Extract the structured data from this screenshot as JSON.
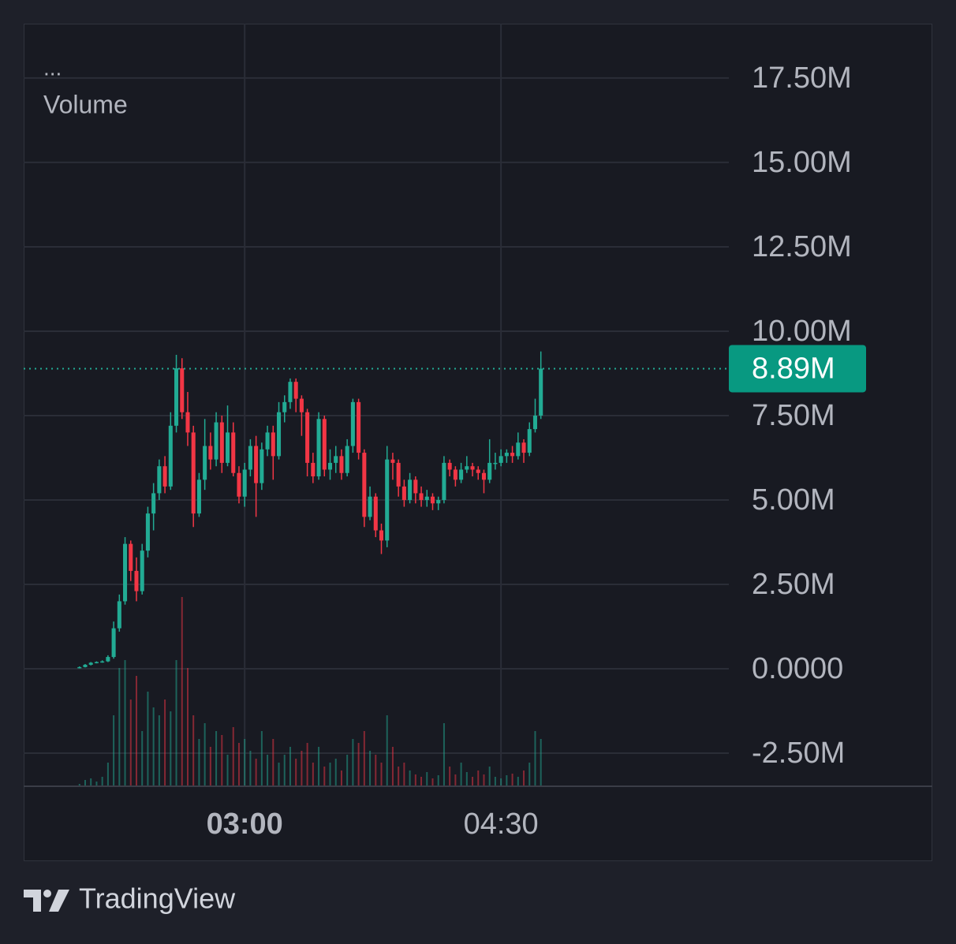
{
  "chart_data": {
    "type": "candlestick",
    "indicator_label": "...",
    "volume_label": "Volume",
    "x": [
      122,
      124,
      126,
      128,
      130,
      132,
      134,
      136,
      138,
      140,
      142,
      144,
      146,
      148,
      150,
      152,
      154,
      156,
      158,
      160,
      162,
      164,
      166,
      168,
      170,
      172,
      174,
      176,
      178,
      180,
      182,
      184,
      186,
      188,
      190,
      192,
      194,
      196,
      198,
      200,
      202,
      204,
      206,
      208,
      210,
      212,
      214,
      216,
      218,
      220,
      222,
      224,
      226,
      228,
      230,
      232,
      234,
      236,
      238,
      240,
      242,
      244,
      246,
      248,
      250,
      252,
      254,
      256,
      258,
      260,
      262,
      264,
      266,
      268,
      270,
      272,
      274,
      276,
      278,
      280,
      282,
      284
    ],
    "open": [
      20000,
      50000,
      120000,
      180000,
      200000,
      220000,
      350000,
      1200000,
      2000000,
      3700000,
      2900000,
      2300000,
      3500000,
      4600000,
      5200000,
      6000000,
      5400000,
      7200000,
      8900000,
      7600000,
      7000000,
      4600000,
      5600000,
      6600000,
      6200000,
      7300000,
      6100000,
      7000000,
      5800000,
      5100000,
      5900000,
      6600000,
      5500000,
      6500000,
      7000000,
      6300000,
      7600000,
      7900000,
      8500000,
      8000000,
      7600000,
      6100000,
      5700000,
      7400000,
      5900000,
      6100000,
      6300000,
      5800000,
      6600000,
      7900000,
      6400000,
      4500000,
      5100000,
      4100000,
      3800000,
      6200000,
      6100000,
      5400000,
      5000000,
      5600000,
      5200000,
      5000000,
      5100000,
      4900000,
      5000000,
      6100000,
      5900000,
      5600000,
      5900000,
      6000000,
      5900000,
      5800000,
      5600000,
      6100000,
      6100000,
      6300000,
      6400000,
      6300000,
      6700000,
      6400000,
      7100000,
      7500000
    ],
    "high": [
      70000,
      140000,
      200000,
      220000,
      250000,
      400000,
      1400000,
      2200000,
      3900000,
      3800000,
      3300000,
      3700000,
      4800000,
      5500000,
      6200000,
      6300000,
      7600000,
      9300000,
      9200000,
      8200000,
      7200000,
      5800000,
      7400000,
      7000000,
      7600000,
      7500000,
      7800000,
      7300000,
      6000000,
      6100000,
      6800000,
      6900000,
      6700000,
      7200000,
      7200000,
      7900000,
      8100000,
      8600000,
      8600000,
      8100000,
      7700000,
      6400000,
      7600000,
      7500000,
      6500000,
      6600000,
      6500000,
      6800000,
      8000000,
      8000000,
      6500000,
      5400000,
      5200000,
      4300000,
      6600000,
      6400000,
      6200000,
      5600000,
      5800000,
      5700000,
      5400000,
      5300000,
      5200000,
      5100000,
      6300000,
      6200000,
      6000000,
      6100000,
      6300000,
      6100000,
      6000000,
      5900000,
      6800000,
      6400000,
      6500000,
      6500000,
      6600000,
      7000000,
      6800000,
      7300000,
      8000000,
      9400000
    ],
    "low": [
      10000,
      40000,
      100000,
      160000,
      180000,
      200000,
      300000,
      1100000,
      1900000,
      2600000,
      2000000,
      2200000,
      3300000,
      4100000,
      5000000,
      5200000,
      5300000,
      7000000,
      7400000,
      6600000,
      4200000,
      4500000,
      5300000,
      5900000,
      6000000,
      5800000,
      6000000,
      5700000,
      4900000,
      4800000,
      5700000,
      4500000,
      5300000,
      6300000,
      5600000,
      6200000,
      7300000,
      7700000,
      7600000,
      6900000,
      5700000,
      5500000,
      5600000,
      5700000,
      5600000,
      5800000,
      5600000,
      5700000,
      6400000,
      6200000,
      4200000,
      4400000,
      3900000,
      3400000,
      3600000,
      5600000,
      5100000,
      4800000,
      4900000,
      4900000,
      4800000,
      4800000,
      4700000,
      4700000,
      4900000,
      5700000,
      5400000,
      5500000,
      5800000,
      5700000,
      5600000,
      5200000,
      5500000,
      5900000,
      6000000,
      6100000,
      6100000,
      6200000,
      6100000,
      6300000,
      7000000,
      7400000
    ],
    "close": [
      50000,
      120000,
      180000,
      200000,
      220000,
      350000,
      1200000,
      2000000,
      3700000,
      2900000,
      2300000,
      3500000,
      4600000,
      5200000,
      6000000,
      5400000,
      7200000,
      8900000,
      7600000,
      7000000,
      4600000,
      5600000,
      6600000,
      6200000,
      7300000,
      6100000,
      7000000,
      5800000,
      5100000,
      5900000,
      6600000,
      5500000,
      6500000,
      7000000,
      6300000,
      7600000,
      7900000,
      8500000,
      8000000,
      7600000,
      6100000,
      5700000,
      7400000,
      5900000,
      6100000,
      6300000,
      5800000,
      6600000,
      7900000,
      6400000,
      4500000,
      5100000,
      4100000,
      3800000,
      6200000,
      6100000,
      5400000,
      5000000,
      5600000,
      5200000,
      5000000,
      5100000,
      4900000,
      5000000,
      6100000,
      5900000,
      5600000,
      5900000,
      6000000,
      5900000,
      5800000,
      5600000,
      6100000,
      6100000,
      6300000,
      6400000,
      6300000,
      6700000,
      6400000,
      7100000,
      7500000,
      8890000
    ],
    "volume": [
      3,
      8,
      10,
      6,
      12,
      30,
      90,
      150,
      160,
      110,
      140,
      70,
      120,
      100,
      90,
      110,
      95,
      160,
      240,
      150,
      90,
      60,
      80,
      50,
      70,
      65,
      40,
      75,
      55,
      60,
      45,
      35,
      70,
      40,
      60,
      30,
      40,
      50,
      35,
      45,
      55,
      30,
      50,
      25,
      30,
      35,
      20,
      40,
      60,
      55,
      70,
      45,
      40,
      30,
      90,
      50,
      25,
      30,
      20,
      15,
      12,
      18,
      10,
      14,
      80,
      25,
      15,
      30,
      18,
      12,
      20,
      15,
      25,
      12,
      10,
      14,
      16,
      12,
      20,
      30,
      70,
      60
    ],
    "up_color": "#22ab94",
    "down_color": "#f23645",
    "xlim": [
      102.4,
      350
    ],
    "xticks": [
      {
        "value": 180,
        "label": "03:00"
      },
      {
        "value": 270,
        "label": "04:30"
      }
    ],
    "ylim": [
      -3480000,
      19110000
    ],
    "yticks": [
      {
        "value": -2500000,
        "label": "-2.50M"
      },
      {
        "value": 0,
        "label": "0.0000"
      },
      {
        "value": 2500000,
        "label": "2.50M"
      },
      {
        "value": 5000000,
        "label": "5.00M"
      },
      {
        "value": 7500000,
        "label": "7.50M"
      },
      {
        "value": 10000000,
        "label": "10.00M"
      },
      {
        "value": 12500000,
        "label": "12.50M"
      },
      {
        "value": 15000000,
        "label": "15.00M"
      },
      {
        "value": 17500000,
        "label": "17.50M"
      }
    ],
    "last_price": {
      "value": 8890000,
      "label": "8.89M"
    },
    "grid": true
  },
  "brand": "TradingView"
}
